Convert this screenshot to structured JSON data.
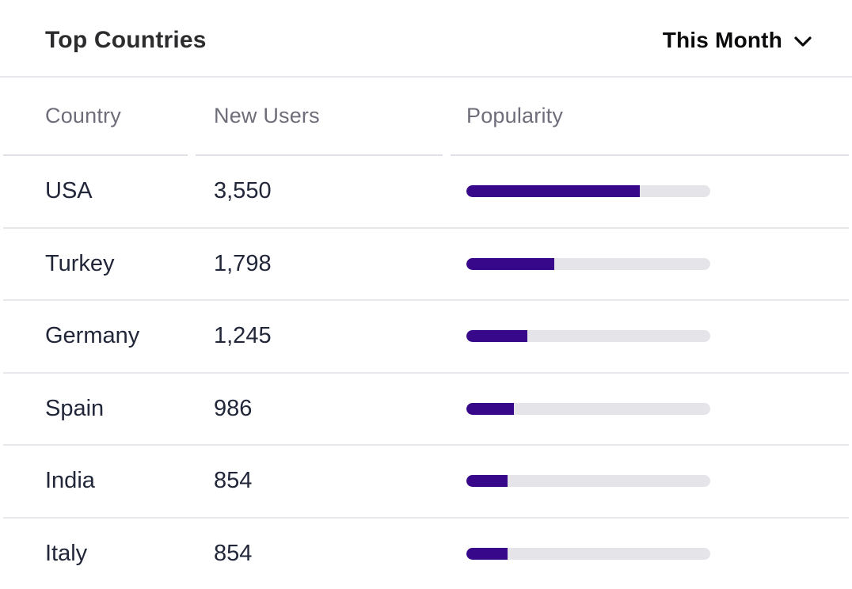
{
  "card": {
    "title": "Top Countries",
    "period_selector": {
      "label": "This Month",
      "icon": "chevron-down-icon"
    }
  },
  "table": {
    "columns": [
      "Country",
      "New Users",
      "Popularity"
    ],
    "rows": [
      {
        "country": "USA",
        "new_users": "3,550",
        "popularity_pct": 71
      },
      {
        "country": "Turkey",
        "new_users": "1,798",
        "popularity_pct": 36
      },
      {
        "country": "Germany",
        "new_users": "1,245",
        "popularity_pct": 25
      },
      {
        "country": "Spain",
        "new_users": "986",
        "popularity_pct": 19.5
      },
      {
        "country": "India",
        "new_users": "854",
        "popularity_pct": 17
      },
      {
        "country": "Italy",
        "new_users": "854",
        "popularity_pct": 17
      }
    ]
  },
  "colors": {
    "bar_fill": "#38088a",
    "bar_track": "#e4e4e9",
    "row_text": "#212639",
    "header_text": "#6e6e7a",
    "title_text": "#2c2c2e",
    "divider": "#e7e8ec"
  },
  "chart_data": {
    "type": "table",
    "title": "Top Countries",
    "columns": [
      "Country",
      "New Users",
      "Popularity"
    ],
    "rows": [
      [
        "USA",
        3550,
        0.71
      ],
      [
        "Turkey",
        1798,
        0.36
      ],
      [
        "Germany",
        1245,
        0.25
      ],
      [
        "Spain",
        986,
        0.195
      ],
      [
        "India",
        854,
        0.17
      ],
      [
        "Italy",
        854,
        0.17
      ]
    ],
    "popularity_bar_scale_max": 5000
  }
}
